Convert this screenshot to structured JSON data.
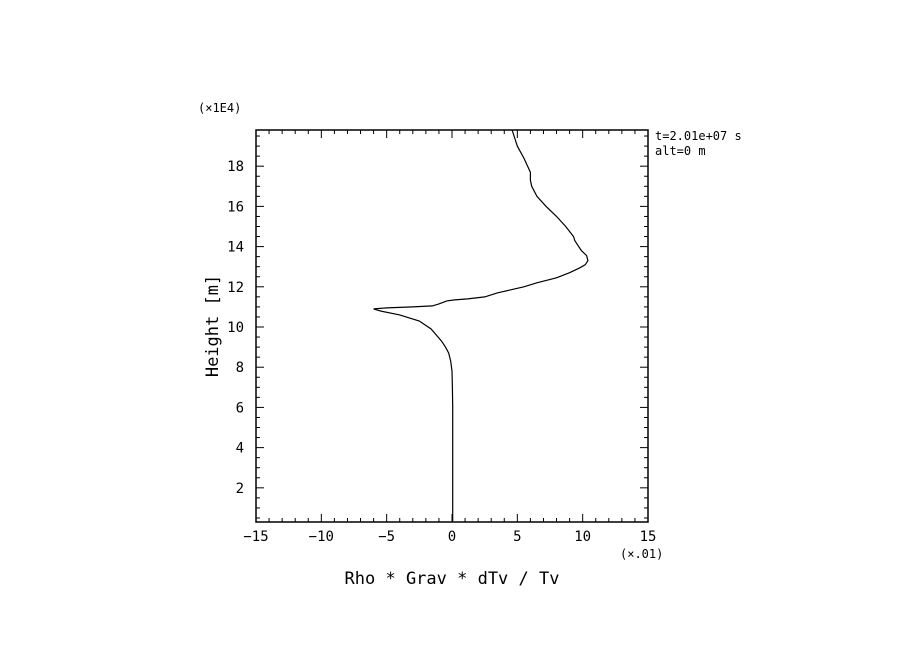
{
  "chart_data": {
    "type": "line",
    "title": "",
    "xlabel": "Rho * Grav * dTv / Tv",
    "ylabel": "Height [m]",
    "x_multiplier": "(×.01)",
    "y_multiplier": "(×1E4)",
    "xlim": [
      -15,
      15
    ],
    "ylim": [
      0.3,
      19.8
    ],
    "xticks": [
      -15,
      -10,
      -5,
      0,
      5,
      10,
      15
    ],
    "xtick_labels": [
      "−15",
      "−10",
      "−5",
      "0",
      "5",
      "10",
      "15"
    ],
    "yticks": [
      2,
      4,
      6,
      8,
      10,
      12,
      14,
      16,
      18
    ],
    "ytick_labels": [
      "2",
      "4",
      "6",
      "8",
      "10",
      "12",
      "14",
      "16",
      "18"
    ],
    "annotations": [
      "t=2.01e+07 s",
      "alt=0 m"
    ],
    "grid": false,
    "series": [
      {
        "x": [
          0.05,
          0.05,
          0.05,
          0.05,
          0.03,
          0.0,
          -0.1,
          -0.25,
          -0.5,
          -0.8,
          -1.2,
          -1.6,
          -2.5,
          -4.0,
          -5.5,
          -6.0,
          -5.0,
          -3.0,
          -1.5,
          -1.0,
          -0.4,
          0.2,
          1.2,
          2.5,
          3.5,
          4.5,
          5.5,
          6.5,
          8.0,
          9.0,
          9.8,
          10.2,
          10.4,
          10.3,
          9.9,
          9.6,
          9.4,
          9.3,
          8.7,
          8.0,
          7.2,
          6.5,
          6.1,
          6.0,
          6.0,
          5.5,
          5.0,
          4.6
        ],
        "y": [
          0.3,
          2.0,
          4.0,
          6.0,
          7.0,
          7.8,
          8.3,
          8.7,
          9.0,
          9.3,
          9.6,
          9.9,
          10.3,
          10.6,
          10.8,
          10.9,
          10.95,
          11.0,
          11.05,
          11.15,
          11.3,
          11.35,
          11.4,
          11.5,
          11.7,
          11.85,
          12.0,
          12.2,
          12.45,
          12.7,
          12.95,
          13.1,
          13.3,
          13.55,
          13.8,
          14.1,
          14.3,
          14.5,
          15.0,
          15.5,
          16.0,
          16.5,
          17.0,
          17.3,
          17.7,
          18.4,
          19.0,
          19.8
        ]
      }
    ]
  }
}
